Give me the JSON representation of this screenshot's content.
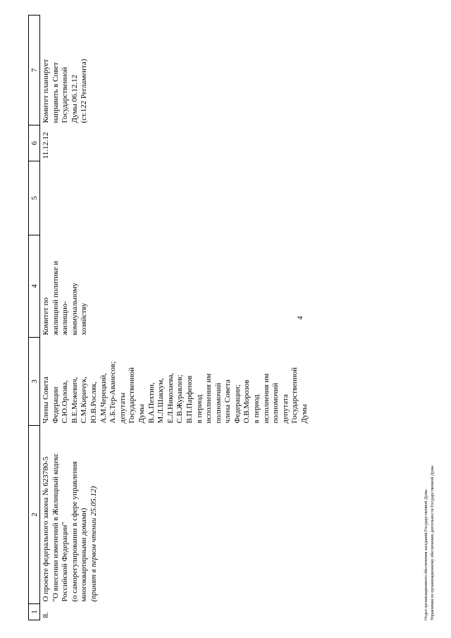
{
  "page_number": "4",
  "table": {
    "headers": [
      "1",
      "2",
      "3",
      "4",
      "5",
      "6",
      "7"
    ],
    "row": {
      "number": "8.",
      "bill_lines": [
        "О проекте федерального закона № 623780-5",
        "\"О внесении изменений в Жилищный кодекс",
        "Российской Федерации\"",
        "(о саморегулировании в сфере управления",
        "многоквартирными домами)"
      ],
      "bill_note": "(принят в первом чтении 25.05.12)",
      "authors_lines": [
        "Члены Совета",
        "Федерации",
        "С.Ю.Орлова,",
        "В.Е.Межевич,",
        "С.М.Киричук,",
        "Ю.В.Росляк,",
        "А.М.Черецкий,",
        "А.Б.Тер-Аванесов;",
        "депутаты",
        "Государственной",
        "Думы",
        "В.А.Пехтин,",
        "М.Л.Шаккум,",
        "Е.Л.Николаева,",
        "С.В.Журавлев;",
        "В.П.Парфенов",
        "в период",
        "исполнения им",
        "полномочий",
        "члена Совета",
        "Федерации;",
        "О.В.Морозов",
        "в период",
        "исполнения им",
        "полномочий",
        "депутата",
        "Государственной",
        "Думы"
      ],
      "committee_lines": [
        "Комитет по",
        "жилищной политике и",
        "жилищно-",
        "коммунальному",
        "хозяйству"
      ],
      "col5": "",
      "date": "11.12.12",
      "note_lines": [
        "Комитет планирует",
        "направить в Совет",
        "Государственной",
        "Думы 06.12.12",
        "(ст.122 Регламента)"
      ]
    }
  },
  "footer": {
    "line1": "Отдел организационного обеспечения заседаний Государственной Думы",
    "line2": "Управления по организационному обеспечению деятельности Государственной Думы"
  }
}
